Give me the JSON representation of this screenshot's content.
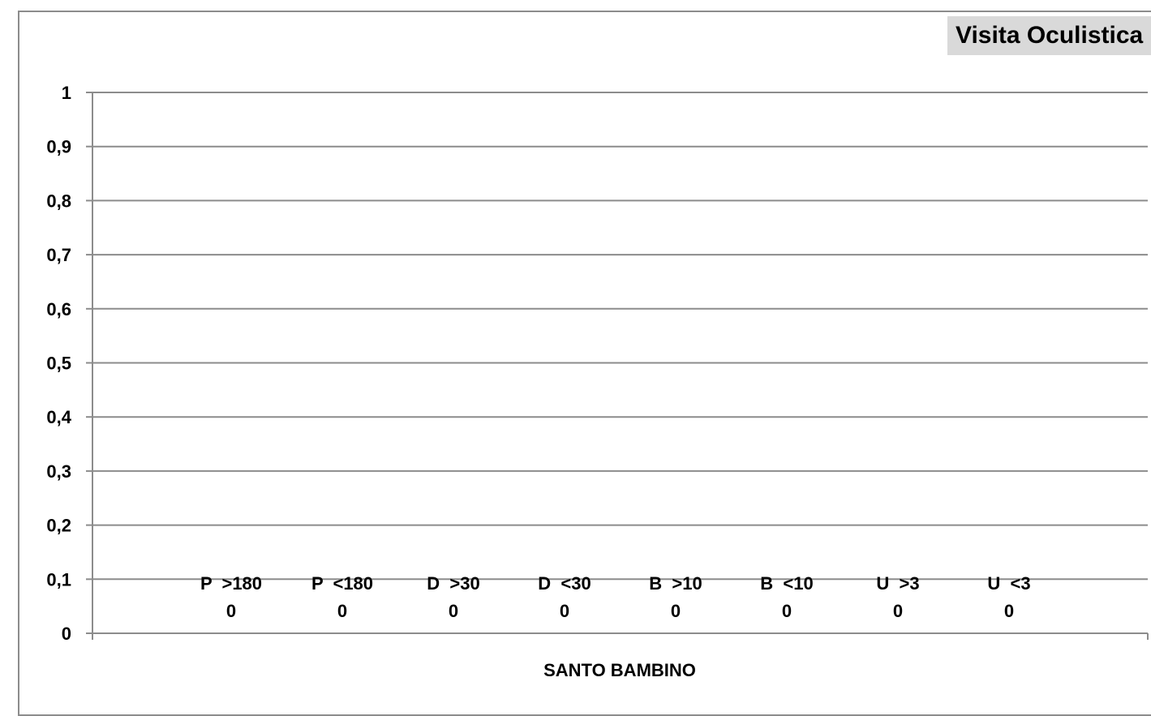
{
  "chart_data": {
    "type": "bar",
    "title": "Visita Oculistica",
    "xlabel": "SANTO BAMBINO",
    "ylabel": "",
    "ylim": [
      0,
      1
    ],
    "yticks": [
      "0",
      "0,1",
      "0,2",
      "0,3",
      "0,4",
      "0,5",
      "0,6",
      "0,7",
      "0,8",
      "0,9",
      "1"
    ],
    "grid": true,
    "categories": [
      "P  >180",
      "P  <180",
      "D  >30",
      "D  <30",
      "B  >10",
      "B  <10",
      "U  >3",
      "U  <3"
    ],
    "values": [
      0,
      0,
      0,
      0,
      0,
      0,
      0,
      0
    ],
    "data_labels": [
      "0",
      "0",
      "0",
      "0",
      "0",
      "0",
      "0",
      "0"
    ]
  }
}
